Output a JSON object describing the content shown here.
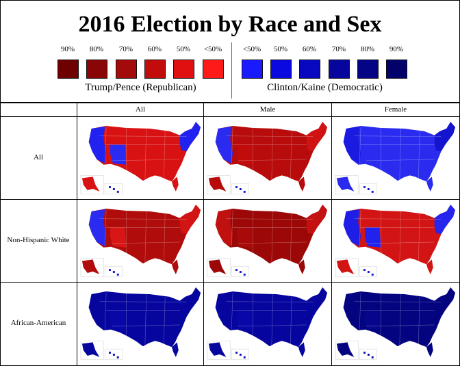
{
  "title": "2016 Election by Race and Sex",
  "legend": {
    "republican": {
      "party_label": "Trump/Pence (Republican)",
      "items": [
        {
          "label": "90%",
          "color": "#6e0000"
        },
        {
          "label": "80%",
          "color": "#8a0606"
        },
        {
          "label": "70%",
          "color": "#a30a0a"
        },
        {
          "label": "60%",
          "color": "#c20c0c"
        },
        {
          "label": "50%",
          "color": "#e01010"
        },
        {
          "label": "<50%",
          "color": "#ff1a1a"
        }
      ]
    },
    "democratic": {
      "party_label": "Clinton/Kaine (Democratic)",
      "items": [
        {
          "label": "<50%",
          "color": "#1a1aff"
        },
        {
          "label": "50%",
          "color": "#0a0ae0"
        },
        {
          "label": "60%",
          "color": "#0808c0"
        },
        {
          "label": "70%",
          "color": "#06069e"
        },
        {
          "label": "80%",
          "color": "#040484"
        },
        {
          "label": "90%",
          "color": "#02026a"
        }
      ]
    }
  },
  "columns": [
    "All",
    "Male",
    "Female"
  ],
  "rows": [
    {
      "label": "All",
      "maps": [
        {
          "base": "#d81212",
          "west_coast": "#2222f0",
          "northeast": "#2222f0",
          "southwest": "#2a2af2",
          "islands": "#1a1acc"
        },
        {
          "base": "#b80c0c",
          "west_coast": "#2a2af0",
          "northeast": "#d01212",
          "southwest": "#c20c0c",
          "islands": "#1a1acc"
        },
        {
          "base": "#2b2bf0",
          "west_coast": "#1a1ae0",
          "northeast": "#1515d0",
          "southwest": "#2a2af0",
          "islands": "#1a1acc"
        }
      ]
    },
    {
      "label": "Non-Hispanic White",
      "maps": [
        {
          "base": "#b00c0c",
          "west_coast": "#2a2af0",
          "northeast": "#d21414",
          "southwest": "#d81616",
          "islands": "#1a1acc"
        },
        {
          "base": "#9c0808",
          "west_coast": "#c01010",
          "northeast": "#c41010",
          "southwest": "#a80a0a",
          "islands": "#1a1acc"
        },
        {
          "base": "#d21414",
          "west_coast": "#1e1ee6",
          "northeast": "#2525ee",
          "southwest": "#2222ee",
          "islands": "#1a1acc"
        }
      ]
    },
    {
      "label": "African-American",
      "maps": [
        {
          "base": "#06069e",
          "west_coast": "#06069e",
          "northeast": "#06069e",
          "southwest": "#0808a8",
          "islands": "#1010c0"
        },
        {
          "base": "#06069e",
          "west_coast": "#06069e",
          "northeast": "#06069e",
          "southwest": "#0808a8",
          "islands": "#1010c0"
        },
        {
          "base": "#040480",
          "west_coast": "#040480",
          "northeast": "#040480",
          "southwest": "#06068c",
          "islands": "#0c0ca8"
        }
      ]
    }
  ]
}
